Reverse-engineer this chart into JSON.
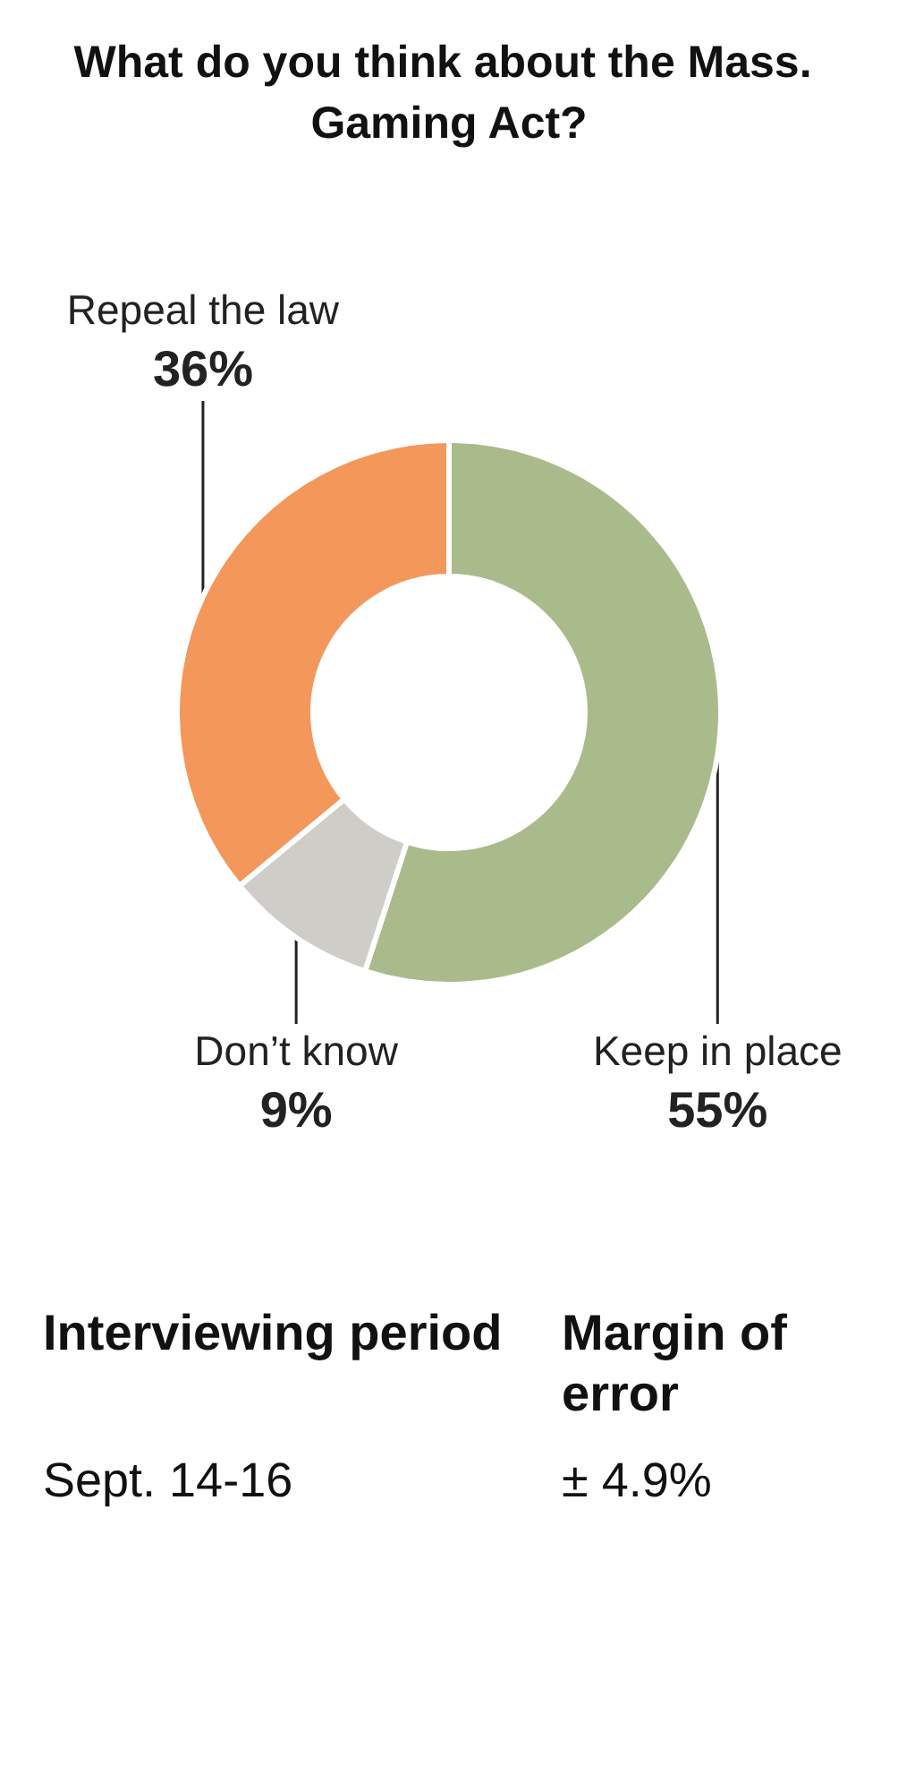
{
  "chart_data": {
    "type": "donut",
    "title": "What do you think about the Mass. Gaming Act?",
    "categories": [
      "Keep in place",
      "Don’t know",
      "Repeal the law"
    ],
    "values": [
      55,
      9,
      36
    ],
    "value_labels": [
      "55%",
      "9%",
      "36%"
    ],
    "colors": [
      "#a9bb8b",
      "#cfcdc8",
      "#f4975b"
    ],
    "annotations": [
      "Interviewing period",
      "Margin of error",
      "Sept. 14-16",
      "± 4.9%"
    ]
  }
}
